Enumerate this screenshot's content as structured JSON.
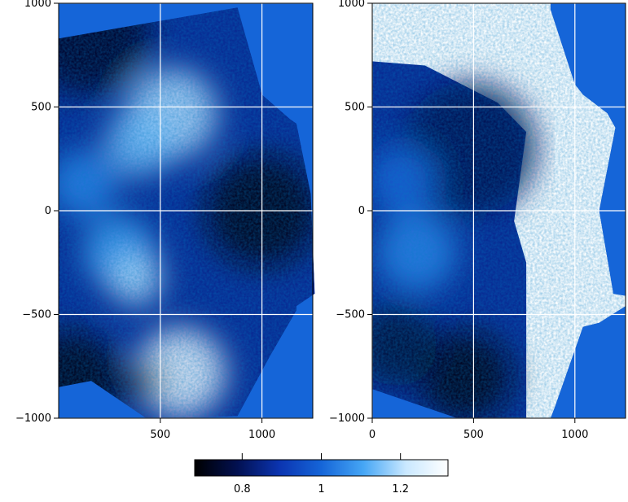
{
  "chart_data": [
    {
      "type": "heatmap",
      "title": "",
      "xlabel": "",
      "ylabel": "",
      "xlim": [
        0,
        1250
      ],
      "ylim": [
        -1000,
        1000
      ],
      "x_ticks": [
        500,
        1000
      ],
      "x_tick_labels": [
        "500",
        "1000"
      ],
      "y_ticks": [
        1000,
        500,
        0,
        -500,
        -1000
      ],
      "y_tick_labels": [
        "1000",
        "500",
        "0",
        "−500",
        "−1000"
      ],
      "grid": true,
      "background_color": "#1565d8",
      "outline_x": [
        0,
        880,
        880,
        990,
        1000,
        1140,
        1170,
        1240,
        1260,
        1170,
        1170,
        1040,
        880,
        620,
        430,
        160,
        0
      ],
      "outline_y": [
        830,
        980,
        980,
        600,
        560,
        440,
        420,
        80,
        -400,
        -460,
        -480,
        -700,
        -990,
        -1000,
        -1000,
        -820,
        -850
      ],
      "features": [
        {
          "x": 560,
          "y": 470,
          "r": 220,
          "value": 1.2
        },
        {
          "x": 400,
          "y": 330,
          "r": 170,
          "value": 1.15
        },
        {
          "x": 120,
          "y": 130,
          "r": 170,
          "value": 1.05
        },
        {
          "x": 300,
          "y": -200,
          "r": 180,
          "value": 1.1
        },
        {
          "x": 380,
          "y": -330,
          "r": 130,
          "value": 1.2
        },
        {
          "x": 600,
          "y": -780,
          "r": 220,
          "value": 1.3
        },
        {
          "x": 1000,
          "y": 0,
          "r": 280,
          "value": 0.7
        },
        {
          "x": 150,
          "y": 850,
          "r": 300,
          "value": 0.72
        },
        {
          "x": 60,
          "y": -820,
          "r": 250,
          "value": 0.7
        },
        {
          "x": 420,
          "y": -820,
          "r": 90,
          "value": 0.72
        }
      ]
    },
    {
      "type": "heatmap",
      "title": "",
      "xlabel": "",
      "ylabel": "",
      "xlim": [
        0,
        1250
      ],
      "ylim": [
        -1000,
        1000
      ],
      "x_ticks": [
        0,
        500,
        1000
      ],
      "x_tick_labels": [
        "0",
        "500",
        "1000"
      ],
      "y_ticks": [
        1000,
        500,
        0,
        -500,
        -1000
      ],
      "y_tick_labels": [
        "1000",
        "500",
        "0",
        "−500",
        "−1000"
      ],
      "grid": true,
      "background_color": "#1565d8",
      "outline_x": [
        0,
        880,
        880,
        1000,
        1040,
        1160,
        1200,
        1120,
        1190,
        1250,
        1250,
        1120,
        1040,
        900,
        880,
        420,
        0
      ],
      "outline_y": [
        1000,
        1000,
        970,
        610,
        560,
        470,
        400,
        0,
        -400,
        -410,
        -460,
        -540,
        -560,
        -950,
        -1000,
        -1000,
        -860
      ],
      "white_region": [
        [
          0,
          1000
        ],
        [
          880,
          1000
        ],
        [
          880,
          970
        ],
        [
          1000,
          610
        ],
        [
          1040,
          560
        ],
        [
          1160,
          470
        ],
        [
          1200,
          400
        ],
        [
          1120,
          0
        ],
        [
          1190,
          -400
        ],
        [
          1250,
          -410
        ],
        [
          1250,
          -460
        ],
        [
          1120,
          -540
        ],
        [
          1040,
          -560
        ],
        [
          900,
          -950
        ],
        [
          880,
          -1000
        ],
        [
          760,
          -1000
        ],
        [
          760,
          -250
        ],
        [
          700,
          -50
        ],
        [
          760,
          380
        ],
        [
          620,
          520
        ],
        [
          420,
          620
        ],
        [
          260,
          700
        ],
        [
          0,
          720
        ]
      ],
      "features": [
        {
          "x": 480,
          "y": 300,
          "r": 330,
          "value": 0.78
        },
        {
          "x": 150,
          "y": 150,
          "r": 170,
          "value": 1.0
        },
        {
          "x": 220,
          "y": -200,
          "r": 200,
          "value": 1.05
        },
        {
          "x": 460,
          "y": -800,
          "r": 230,
          "value": 0.7
        },
        {
          "x": 120,
          "y": -650,
          "r": 200,
          "value": 0.75
        }
      ]
    }
  ],
  "colorbar": {
    "vmin": 0.68,
    "vmax": 1.32,
    "ticks": [
      0.8,
      1,
      1.2
    ],
    "tick_labels": [
      "0.8",
      "1",
      "1.2"
    ],
    "colors": [
      "#000000",
      "#021050",
      "#0b34b0",
      "#1565d8",
      "#46a6f5",
      "#c9e8ff",
      "#ffffff"
    ]
  }
}
